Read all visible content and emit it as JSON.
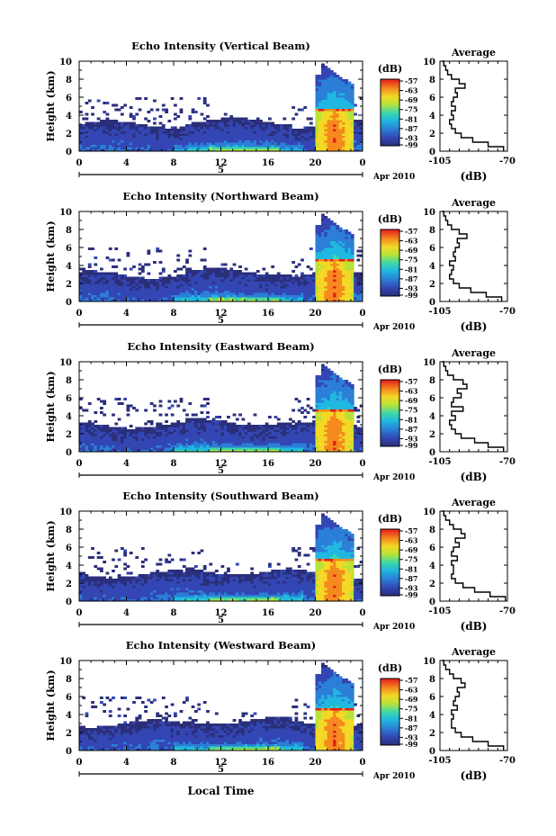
{
  "chart_data": [
    {
      "type": "heatmap",
      "title": "Echo Intensity (Vertical Beam)",
      "ylabel": "Height (km)",
      "xticks": [
        "0",
        "4",
        "8",
        "12",
        "16",
        "20",
        "0"
      ],
      "yticks": [
        "0",
        "2",
        "4",
        "6",
        "8",
        "10"
      ],
      "date_label": "5",
      "month_label": "Apr 2010",
      "colorbar_unit": "(dB)",
      "colorbar_ticks": [
        "-57",
        "-63",
        "-69",
        "-75",
        "-81",
        "-87",
        "-93",
        "-99"
      ],
      "xlim": [
        0,
        24
      ],
      "ylim": [
        0,
        10
      ],
      "clim": [
        -99,
        -57
      ],
      "avg": {
        "title": "Average",
        "xlabel": "(dB)",
        "xticks": [
          "-105",
          "-70"
        ],
        "xlim": [
          -105,
          -70
        ],
        "heights": [
          0,
          0.5,
          1,
          1.5,
          2,
          2.5,
          3,
          3.5,
          4,
          4.5,
          5,
          5.5,
          6,
          6.5,
          7,
          7.5,
          8,
          8.5,
          9,
          9.5,
          10
        ],
        "values": [
          -72,
          -80,
          -88,
          -94,
          -97,
          -99,
          -100,
          -98,
          -99,
          -97,
          -99,
          -98,
          -96,
          -97,
          -92,
          -95,
          -99,
          -101,
          -102,
          -103,
          -104
        ]
      }
    },
    {
      "type": "heatmap",
      "title": "Echo Intensity (Northward Beam)",
      "ylabel": "Height (km)",
      "xticks": [
        "0",
        "4",
        "8",
        "12",
        "16",
        "20",
        "0"
      ],
      "yticks": [
        "0",
        "2",
        "4",
        "6",
        "8",
        "10"
      ],
      "date_label": "5",
      "month_label": "Apr 2010",
      "colorbar_unit": "(dB)",
      "colorbar_ticks": [
        "-57",
        "-63",
        "-69",
        "-75",
        "-81",
        "-87",
        "-93",
        "-99"
      ],
      "xlim": [
        0,
        24
      ],
      "ylim": [
        0,
        10
      ],
      "clim": [
        -99,
        -57
      ],
      "avg": {
        "title": "Average",
        "xlabel": "(dB)",
        "xticks": [
          "-105",
          "-70"
        ],
        "xlim": [
          -105,
          -70
        ],
        "heights": [
          0,
          0.5,
          1,
          1.5,
          2,
          2.5,
          3,
          3.5,
          4,
          4.5,
          5,
          5.5,
          6,
          6.5,
          7,
          7.5,
          8,
          8.5,
          9,
          9.5,
          10
        ],
        "values": [
          -73,
          -81,
          -89,
          -95,
          -98,
          -100,
          -99,
          -98,
          -100,
          -97,
          -98,
          -97,
          -95,
          -96,
          -91,
          -95,
          -99,
          -101,
          -102,
          -103,
          -104
        ]
      }
    },
    {
      "type": "heatmap",
      "title": "Echo Intensity (Eastward Beam)",
      "ylabel": "Height (km)",
      "xticks": [
        "0",
        "4",
        "8",
        "12",
        "16",
        "20",
        "0"
      ],
      "yticks": [
        "0",
        "2",
        "4",
        "6",
        "8",
        "10"
      ],
      "date_label": "5",
      "month_label": "Apr 2010",
      "colorbar_unit": "(dB)",
      "colorbar_ticks": [
        "-57",
        "-63",
        "-69",
        "-75",
        "-81",
        "-87",
        "-93",
        "-99"
      ],
      "xlim": [
        0,
        24
      ],
      "ylim": [
        0,
        10
      ],
      "clim": [
        -99,
        -57
      ],
      "avg": {
        "title": "Average",
        "xlabel": "(dB)",
        "xticks": [
          "-105",
          "-70"
        ],
        "xlim": [
          -105,
          -70
        ],
        "heights": [
          0,
          0.5,
          1,
          1.5,
          2,
          2.5,
          3,
          3.5,
          4,
          4.5,
          5,
          5.5,
          6,
          6.5,
          7,
          7.5,
          8,
          8.5,
          9,
          9.5,
          10
        ],
        "values": [
          -72,
          -80,
          -87,
          -94,
          -97,
          -99,
          -100,
          -97,
          -99,
          -93,
          -99,
          -98,
          -94,
          -96,
          -91,
          -93,
          -98,
          -101,
          -102,
          -103,
          -104
        ]
      }
    },
    {
      "type": "heatmap",
      "title": "Echo Intensity (Southward Beam)",
      "ylabel": "Height (km)",
      "xticks": [
        "0",
        "4",
        "8",
        "12",
        "16",
        "20",
        "0"
      ],
      "yticks": [
        "0",
        "2",
        "4",
        "6",
        "8",
        "10"
      ],
      "date_label": "5",
      "month_label": "Apr 2010",
      "colorbar_unit": "(dB)",
      "colorbar_ticks": [
        "-57",
        "-63",
        "-69",
        "-75",
        "-81",
        "-87",
        "-93",
        "-99"
      ],
      "xlim": [
        0,
        24
      ],
      "ylim": [
        0,
        10
      ],
      "clim": [
        -99,
        -57
      ],
      "avg": {
        "title": "Average",
        "xlabel": "(dB)",
        "xticks": [
          "-105",
          "-70"
        ],
        "xlim": [
          -105,
          -70
        ],
        "heights": [
          0,
          0.5,
          1,
          1.5,
          2,
          2.5,
          3,
          3.5,
          4,
          4.5,
          5,
          5.5,
          6,
          6.5,
          7,
          7.5,
          8,
          8.5,
          9,
          9.5,
          10
        ],
        "values": [
          -71,
          -79,
          -87,
          -93,
          -97,
          -99,
          -98,
          -98,
          -99,
          -96,
          -99,
          -98,
          -95,
          -97,
          -92,
          -94,
          -98,
          -100,
          -102,
          -103,
          -104
        ]
      }
    },
    {
      "type": "heatmap",
      "title": "Echo Intensity (Westward Beam)",
      "ylabel": "Height (km)",
      "xticks": [
        "0",
        "4",
        "8",
        "12",
        "16",
        "20",
        "0"
      ],
      "yticks": [
        "0",
        "2",
        "4",
        "6",
        "8",
        "10"
      ],
      "date_label": "5",
      "month_label": "Apr 2010",
      "colorbar_unit": "(dB)",
      "colorbar_ticks": [
        "-57",
        "-63",
        "-69",
        "-75",
        "-81",
        "-87",
        "-93",
        "-99"
      ],
      "xlim": [
        0,
        24
      ],
      "ylim": [
        0,
        10
      ],
      "clim": [
        -99,
        -57
      ],
      "xlabel": "Local Time",
      "avg": {
        "title": "Average",
        "xlabel": "(dB)",
        "xticks": [
          "-105",
          "-70"
        ],
        "xlim": [
          -105,
          -70
        ],
        "heights": [
          0,
          0.5,
          1,
          1.5,
          2,
          2.5,
          3,
          3.5,
          4,
          4.5,
          5,
          5.5,
          6,
          6.5,
          7,
          7.5,
          8,
          8.5,
          9,
          9.5,
          10
        ],
        "values": [
          -72,
          -80,
          -88,
          -94,
          -97,
          -99,
          -99,
          -98,
          -99,
          -96,
          -98,
          -97,
          -95,
          -96,
          -92,
          -94,
          -98,
          -100,
          -102,
          -103,
          -104
        ]
      }
    }
  ]
}
